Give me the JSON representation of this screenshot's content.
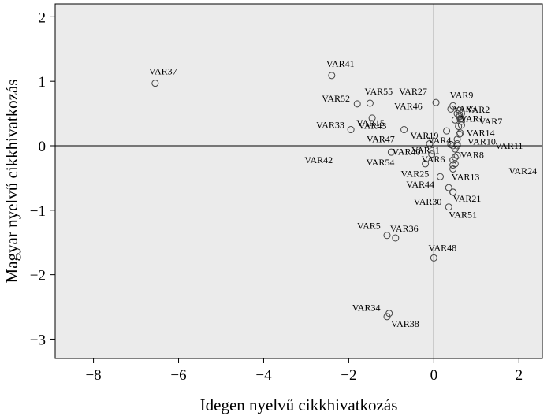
{
  "chart_data": {
    "type": "scatter",
    "xlabel": "Idegen nyelvű cikkhivatkozás",
    "ylabel": "Magyar nyelvű cikkhivatkozás",
    "xlim": [
      -8.9,
      2.55
    ],
    "ylim": [
      -3.3,
      2.2
    ],
    "xticks": [
      -8,
      -6,
      -4,
      -2,
      0,
      2
    ],
    "yticks": [
      -3,
      -2,
      -1,
      0,
      1,
      2
    ],
    "reference_lines": {
      "x": 0,
      "y": 0
    },
    "grid": false,
    "legend": "none",
    "colors": {
      "plot_background": "#ebebeb",
      "marker": "#444444",
      "axis": "#000000"
    },
    "points": [
      {
        "label": "VAR37",
        "x": -6.55,
        "y": 0.97
      },
      {
        "label": "VAR41",
        "x": -2.4,
        "y": 1.09
      },
      {
        "label": "VAR52",
        "x": -1.8,
        "y": 0.65
      },
      {
        "label": "VAR55",
        "x": -1.5,
        "y": 0.66
      },
      {
        "label": "VAR33",
        "x": -1.95,
        "y": 0.25
      },
      {
        "label": "VAR15",
        "x": -1.45,
        "y": 0.43
      },
      {
        "label": "VAR43",
        "x": -0.7,
        "y": 0.25
      },
      {
        "label": "VAR47",
        "x": -0.1,
        "y": 0.03
      },
      {
        "label": "VAR42",
        "x": -1.0,
        "y": -0.1
      },
      {
        "label": "VAR40",
        "x": -0.05,
        "y": -0.13
      },
      {
        "label": "VAR54",
        "x": -0.2,
        "y": -0.28
      },
      {
        "label": "VAR27",
        "x": 0.05,
        "y": 0.67
      },
      {
        "label": "VAR46",
        "x": 0.4,
        "y": 0.57
      },
      {
        "label": "VAR19",
        "x": 0.3,
        "y": 0.23
      },
      {
        "label": "VAR31",
        "x": 0.4,
        "y": 0.02
      },
      {
        "label": "VAR4",
        "x": 0.45,
        "y": 0.0
      },
      {
        "label": "VAR6",
        "x": 0.45,
        "y": -0.22
      },
      {
        "label": "VAR25",
        "x": 0.15,
        "y": -0.48
      },
      {
        "label": "VAR44",
        "x": 0.35,
        "y": -0.65
      },
      {
        "label": "VAR30",
        "x": 0.45,
        "y": -0.72
      },
      {
        "label": "VAR9",
        "x": 0.45,
        "y": 0.62
      },
      {
        "label": "VAR3",
        "x": 0.6,
        "y": 0.48
      },
      {
        "label": "VAR2",
        "x": 0.65,
        "y": 0.5
      },
      {
        "label": "VAR1",
        "x": 0.62,
        "y": 0.42
      },
      {
        "label": "VAR7",
        "x": 0.65,
        "y": 0.38
      },
      {
        "label": "VAR14",
        "x": 0.6,
        "y": 0.18
      },
      {
        "label": "VAR10",
        "x": 0.55,
        "y": 0.03
      },
      {
        "label": "VAR11",
        "x": 0.55,
        "y": 0.0
      },
      {
        "label": "VAR8",
        "x": 0.55,
        "y": -0.15
      },
      {
        "label": "VAR24",
        "x": 0.5,
        "y": -0.28
      },
      {
        "label": "VAR13",
        "x": 0.45,
        "y": -0.36
      },
      {
        "label": "VAR21",
        "x": 0.45,
        "y": -0.72
      },
      {
        "label": "VAR51",
        "x": 0.35,
        "y": -0.95
      },
      {
        "label": "VAR5",
        "x": -1.1,
        "y": -1.39
      },
      {
        "label": "VAR36",
        "x": -0.9,
        "y": -1.43
      },
      {
        "label": "VAR48",
        "x": 0.0,
        "y": -1.74
      },
      {
        "label": "VAR34",
        "x": -1.05,
        "y": -2.6
      },
      {
        "label": "VAR38",
        "x": -1.1,
        "y": -2.65
      }
    ],
    "unlabeled_points": [
      {
        "x": 0.55,
        "y": 0.5
      },
      {
        "x": 0.6,
        "y": 0.45
      },
      {
        "x": 0.58,
        "y": 0.3
      },
      {
        "x": 0.65,
        "y": 0.32
      },
      {
        "x": 0.55,
        "y": 0.1
      },
      {
        "x": 0.62,
        "y": 0.2
      },
      {
        "x": 0.5,
        "y": -0.05
      },
      {
        "x": 0.45,
        "y": -0.3
      },
      {
        "x": 0.5,
        "y": -0.18
      },
      {
        "x": 0.6,
        "y": 0.55
      },
      {
        "x": 0.65,
        "y": 0.42
      },
      {
        "x": 0.5,
        "y": 0.4
      }
    ]
  }
}
